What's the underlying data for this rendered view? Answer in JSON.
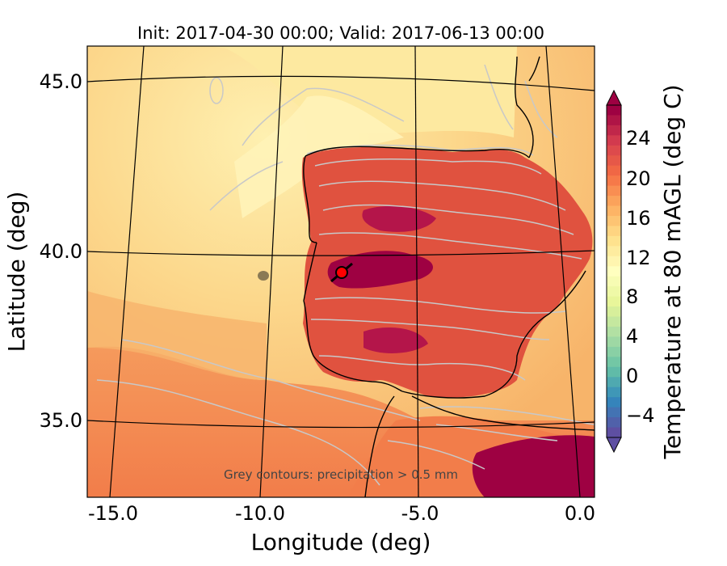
{
  "title": "Init: 2017-04-30 00:00; Valid: 2017-06-13 00:00",
  "xlabel": "Longitude (deg)",
  "ylabel": "Latitude (deg)",
  "x_ticks": [
    "-15.0",
    "-10.0",
    "-5.0",
    "0.0"
  ],
  "y_ticks": [
    "45.0",
    "40.0",
    "35.0"
  ],
  "annotation": "Grey contours: precipitation > 0.5 mm",
  "colorbar": {
    "label": "Temperature at 80 mAGL (deg C)",
    "ticks": [
      "24",
      "20",
      "16",
      "12",
      "8",
      "4",
      "0",
      "−4"
    ],
    "range": [
      -6,
      27
    ],
    "colormap": "Spectral_r",
    "extend": "both"
  },
  "colors": {
    "ocean_warm": "#f9c97a",
    "ocean_cool": "#fde9a0",
    "land_hot": "#9e0142",
    "land_warm": "#e0523f",
    "precip_contour": "#c8c8c8",
    "marker": "#ff0000"
  }
}
